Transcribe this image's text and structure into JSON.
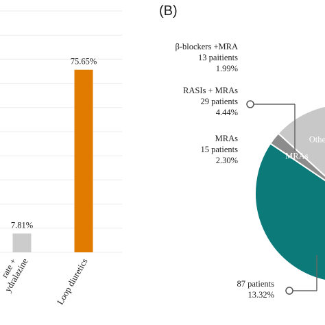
{
  "panel_b_label": "(B)",
  "chart_data": [
    {
      "type": "bar",
      "categories": [
        "Isosorbide dinitrate + hydralazine",
        "Loop diuretics"
      ],
      "category_labels_visible": [
        "rate +",
        "ydralazine",
        "Loop diuretics"
      ],
      "values": [
        7.81,
        75.65
      ],
      "data_labels": [
        "7.81%",
        "75.65%"
      ],
      "colors": [
        "#cccccc",
        "#e07b00"
      ],
      "ylim": [
        0,
        100
      ],
      "grid": true
    },
    {
      "type": "pie",
      "slices": [
        {
          "label": "MRAs",
          "value": 2.3,
          "color": "#8c8c8c"
        },
        {
          "label": "Others",
          "value": 13.32,
          "color": "#c8c8c8"
        },
        {
          "label": "RAS",
          "value": 13.32,
          "color": "#1f7fb4"
        },
        {
          "label": "",
          "value": 4.44,
          "color": "#1a6f9f"
        },
        {
          "label": "",
          "value": 1.99,
          "color": "#0a6b6b"
        },
        {
          "label": "",
          "value": 64.63,
          "color": "#0b7a78"
        }
      ],
      "annotations": [
        {
          "name": "beta-blockers-mra",
          "lines": [
            "β-blockers +MRA",
            "13 paitients",
            "1.99%"
          ]
        },
        {
          "name": "rasis-mras",
          "lines": [
            "RASIs + MRAs",
            "29 patients",
            "4.44%"
          ]
        },
        {
          "name": "mras",
          "lines": [
            "MRAs",
            "15 patients",
            "2.30%"
          ]
        },
        {
          "name": "bottom",
          "lines": [
            "87 patients",
            "13.32%"
          ]
        }
      ]
    }
  ]
}
